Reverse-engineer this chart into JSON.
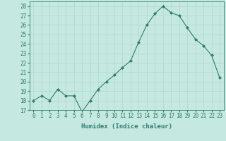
{
  "x": [
    0,
    1,
    2,
    3,
    4,
    5,
    6,
    7,
    8,
    9,
    10,
    11,
    12,
    13,
    14,
    15,
    16,
    17,
    18,
    19,
    20,
    21,
    22,
    23
  ],
  "y": [
    18,
    18.5,
    18,
    19.2,
    18.5,
    18.5,
    16.8,
    18,
    19.2,
    20,
    20.7,
    21.5,
    22.2,
    24.2,
    26,
    27.2,
    28,
    27.3,
    27,
    25.7,
    24.5,
    23.8,
    22.8,
    20.4
  ],
  "line_color": "#2e7d6e",
  "marker": "D",
  "marker_size": 2,
  "bg_color": "#c5e8e0",
  "grid_color": "#b0d8ce",
  "xlabel": "Humidex (Indice chaleur)",
  "ylim": [
    17,
    28.5
  ],
  "xlim": [
    -0.5,
    23.5
  ],
  "yticks": [
    17,
    18,
    19,
    20,
    21,
    22,
    23,
    24,
    25,
    26,
    27,
    28
  ],
  "xticks": [
    0,
    1,
    2,
    3,
    4,
    5,
    6,
    7,
    8,
    9,
    10,
    11,
    12,
    13,
    14,
    15,
    16,
    17,
    18,
    19,
    20,
    21,
    22,
    23
  ],
  "tick_color": "#2e7d6e",
  "label_color": "#2e7d6e",
  "xlabel_fontsize": 6.5,
  "tick_fontsize": 5.5
}
